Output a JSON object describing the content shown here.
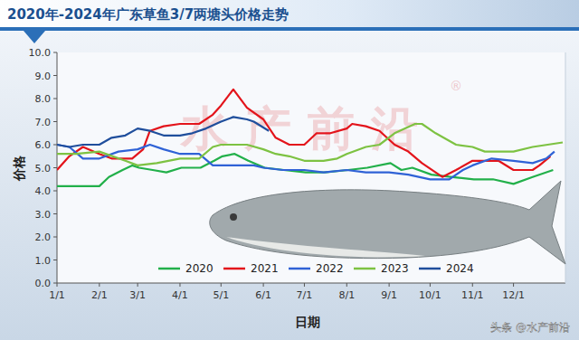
{
  "chart_data": {
    "type": "line",
    "title": "2020年-2024年广东草鱼3/7两塘头价格走势",
    "x_label": "日期",
    "y_label": "价格",
    "watermark": "水产前沿",
    "watermark_mark": "®",
    "source": "头条 @水产前沿",
    "xlim": [
      0,
      372
    ],
    "xticks": [
      {
        "value": 0,
        "label": "1/1"
      },
      {
        "value": 31,
        "label": "2/1"
      },
      {
        "value": 59,
        "label": "3/1"
      },
      {
        "value": 90,
        "label": "4/1"
      },
      {
        "value": 120,
        "label": "5/1"
      },
      {
        "value": 151,
        "label": "6/1"
      },
      {
        "value": 181,
        "label": "7/1"
      },
      {
        "value": 212,
        "label": "8/1"
      },
      {
        "value": 243,
        "label": "9/1"
      },
      {
        "value": 273,
        "label": "10/1"
      },
      {
        "value": 304,
        "label": "11/1"
      },
      {
        "value": 334,
        "label": "12/1"
      }
    ],
    "ylim": [
      0,
      10
    ],
    "yticks": [
      {
        "value": 0,
        "label": "0.0"
      },
      {
        "value": 1,
        "label": "1.0"
      },
      {
        "value": 2,
        "label": "2.0"
      },
      {
        "value": 3,
        "label": "3.0"
      },
      {
        "value": 4,
        "label": "4.0"
      },
      {
        "value": 5,
        "label": "5.0"
      },
      {
        "value": 6,
        "label": "6.0"
      },
      {
        "value": 7,
        "label": "7.0"
      },
      {
        "value": 8,
        "label": "8.0"
      },
      {
        "value": 9,
        "label": "9.0"
      },
      {
        "value": 10,
        "label": "10.0"
      }
    ],
    "grid": false,
    "legend": "bottom",
    "series": [
      {
        "name": "2020",
        "color": "#22b04a",
        "x": [
          0,
          14,
          31,
          38,
          48,
          55,
          60,
          70,
          80,
          91,
          105,
          115,
          121,
          130,
          140,
          152,
          166,
          182,
          196,
          213,
          227,
          244,
          252,
          260,
          274,
          288,
          305,
          319,
          334,
          348,
          363
        ],
        "values": [
          4.2,
          4.2,
          4.2,
          4.6,
          4.9,
          5.1,
          5.0,
          4.9,
          4.8,
          5.0,
          5.0,
          5.3,
          5.5,
          5.6,
          5.3,
          5.0,
          4.9,
          4.8,
          4.8,
          4.9,
          5.0,
          5.2,
          4.9,
          5.0,
          4.7,
          4.6,
          4.5,
          4.5,
          4.3,
          4.6,
          4.9
        ]
      },
      {
        "name": "2021",
        "color": "#e3141b",
        "x": [
          0,
          9,
          19,
          31,
          40,
          55,
          63,
          68,
          78,
          90,
          104,
          114,
          120,
          129,
          139,
          151,
          160,
          170,
          181,
          190,
          200,
          212,
          216,
          226,
          236,
          247,
          257,
          267,
          277,
          282,
          292,
          304,
          323,
          334,
          348,
          353,
          361
        ],
        "values": [
          4.9,
          5.5,
          5.9,
          5.6,
          5.4,
          5.4,
          5.8,
          6.6,
          6.8,
          6.9,
          6.9,
          7.3,
          7.7,
          8.4,
          7.6,
          7.1,
          6.3,
          6.0,
          6.0,
          6.5,
          6.5,
          6.7,
          6.9,
          6.8,
          6.6,
          6.0,
          5.7,
          5.2,
          4.8,
          4.6,
          4.9,
          5.3,
          5.3,
          4.9,
          4.9,
          5.1,
          5.5
        ]
      },
      {
        "name": "2022",
        "color": "#2f62d6",
        "x": [
          0,
          9,
          19,
          31,
          45,
          59,
          68,
          78,
          90,
          104,
          114,
          134,
          144,
          151,
          165,
          181,
          195,
          212,
          226,
          243,
          257,
          273,
          287,
          297,
          304,
          318,
          334,
          348,
          358,
          364
        ],
        "values": [
          6.0,
          5.9,
          5.4,
          5.4,
          5.7,
          5.8,
          6.0,
          5.8,
          5.6,
          5.6,
          5.1,
          5.1,
          5.1,
          5.0,
          4.9,
          4.9,
          4.8,
          4.9,
          4.8,
          4.8,
          4.7,
          4.5,
          4.5,
          4.9,
          5.1,
          5.4,
          5.3,
          5.2,
          5.4,
          5.7
        ]
      },
      {
        "name": "2023",
        "color": "#7dc242",
        "x": [
          0,
          14,
          31,
          50,
          59,
          73,
          90,
          104,
          114,
          120,
          139,
          151,
          160,
          170,
          181,
          195,
          205,
          212,
          226,
          236,
          247,
          262,
          267,
          277,
          292,
          304,
          313,
          334,
          348,
          370
        ],
        "values": [
          5.6,
          5.6,
          5.7,
          5.3,
          5.1,
          5.2,
          5.4,
          5.4,
          5.9,
          6.0,
          6.0,
          5.8,
          5.6,
          5.5,
          5.3,
          5.3,
          5.4,
          5.6,
          5.9,
          6.0,
          6.5,
          6.9,
          6.9,
          6.5,
          6.0,
          5.9,
          5.7,
          5.7,
          5.9,
          6.1
        ]
      },
      {
        "name": "2024",
        "color": "#1f4e9c",
        "x": [
          0,
          9,
          19,
          31,
          40,
          50,
          59,
          68,
          78,
          90,
          99,
          109,
          120,
          129,
          139,
          144,
          155
        ],
        "values": [
          6.0,
          5.9,
          6.0,
          6.0,
          6.3,
          6.4,
          6.7,
          6.6,
          6.4,
          6.4,
          6.5,
          6.7,
          7.0,
          7.2,
          7.1,
          7.0,
          6.6
        ]
      }
    ]
  }
}
